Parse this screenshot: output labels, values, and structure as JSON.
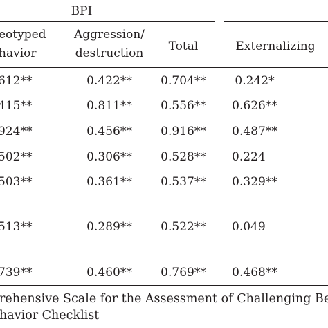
{
  "table": {
    "group_header": "BPI",
    "columns": [
      {
        "line1": "eotyped",
        "line2": "havior"
      },
      {
        "line1": "Aggression/",
        "line2": "destruction"
      },
      {
        "line1": "Total",
        "line2": ""
      },
      {
        "line1": "Externalizing",
        "line2": ""
      }
    ],
    "rows": [
      [
        "612**",
        "0.422**",
        "0.704**",
        "0.242*"
      ],
      [
        "415**",
        "0.811**",
        "0.556**",
        "0.626**"
      ],
      [
        "924**",
        "0.456**",
        "0.916**",
        "0.487**"
      ],
      [
        "502**",
        "0.306**",
        "0.528**",
        "0.224"
      ],
      [
        "503**",
        "0.361**",
        "0.537**",
        "0.329**"
      ],
      [
        "513**",
        "0.289**",
        "0.522**",
        "0.049"
      ],
      [
        "739**",
        "0.460**",
        "0.769**",
        "0.468**"
      ]
    ]
  },
  "footnote": {
    "line1": "rehensive Scale for the Assessment of Challenging Beh",
    "line2": "havior Checklist"
  }
}
